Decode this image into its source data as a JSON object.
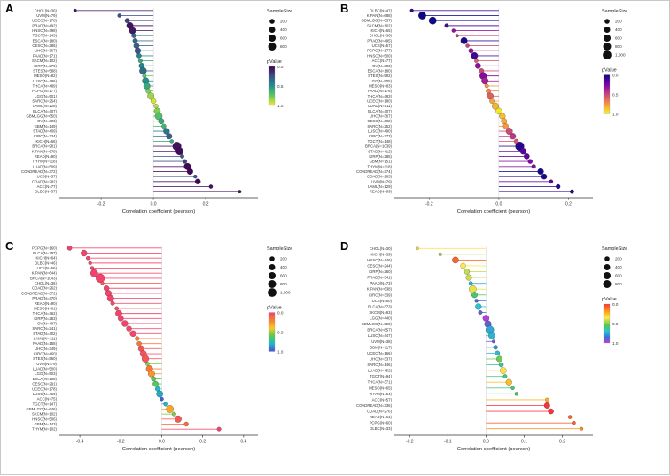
{
  "figure_title": "Pan-cancer correlation lollipop panels",
  "chart_data": [
    {
      "panel": "A",
      "type": "lollipop",
      "xlabel": "Correlation coefficient (pearson)",
      "xlim": [
        -0.36,
        0.4
      ],
      "xticks": [
        -0.2,
        0.0,
        0.2
      ],
      "size_legend": {
        "title": "SampleSize",
        "values": [
          200,
          400,
          600,
          800
        ]
      },
      "p_legend": {
        "title": "pValue",
        "ticks": [
          0.0,
          0.5,
          1.0
        ],
        "stops": [
          [
            0,
            "#440154"
          ],
          [
            0.25,
            "#3b528b"
          ],
          [
            0.5,
            "#21918c"
          ],
          [
            0.75,
            "#5ec962"
          ],
          [
            1,
            "#fde725"
          ]
        ]
      },
      "items": [
        {
          "l": "CHOL(N=36)",
          "n": 36,
          "r": -0.3,
          "p": 0.08
        },
        {
          "l": "UVM(N=79)",
          "n": 79,
          "r": -0.13,
          "p": 0.25
        },
        {
          "l": "UCEC(N=178)",
          "n": 178,
          "r": -0.1,
          "p": 0.2
        },
        {
          "l": "PRAD(N=492)",
          "n": 492,
          "r": -0.09,
          "p": 0.05
        },
        {
          "l": "HNSC(N=498)",
          "n": 498,
          "r": -0.08,
          "p": 0.07
        },
        {
          "l": "TGCT(N=143)",
          "n": 143,
          "r": -0.075,
          "p": 0.35
        },
        {
          "l": "ESCA(N=180)",
          "n": 180,
          "r": -0.07,
          "p": 0.35
        },
        {
          "l": "CESC(N=286)",
          "n": 286,
          "r": -0.065,
          "p": 0.3
        },
        {
          "l": "LIHC(N=367)",
          "n": 367,
          "r": -0.06,
          "p": 0.25
        },
        {
          "l": "PAAD(N=171)",
          "n": 171,
          "r": -0.055,
          "p": 0.45
        },
        {
          "l": "SKCM(N=102)",
          "n": 102,
          "r": -0.05,
          "p": 0.6
        },
        {
          "l": "KIRP(N=279)",
          "n": 279,
          "r": -0.045,
          "p": 0.45
        },
        {
          "l": "STES(N=588)",
          "n": 588,
          "r": -0.04,
          "p": 0.35
        },
        {
          "l": "MESO(N=82)",
          "n": 82,
          "r": -0.035,
          "p": 0.75
        },
        {
          "l": "LUSC(N=486)",
          "n": 486,
          "r": -0.03,
          "p": 0.5
        },
        {
          "l": "THCA(N=489)",
          "n": 489,
          "r": -0.025,
          "p": 0.6
        },
        {
          "l": "PCPG(N=177)",
          "n": 177,
          "r": -0.02,
          "p": 0.8
        },
        {
          "l": "LGG(N=501)",
          "n": 501,
          "r": -0.01,
          "p": 0.85
        },
        {
          "l": "SARC(N=254)",
          "n": 254,
          "r": 0.0,
          "p": 0.95
        },
        {
          "l": "LAML(N=126)",
          "n": 126,
          "r": 0.01,
          "p": 0.9
        },
        {
          "l": "BLCA(N=407)",
          "n": 407,
          "r": 0.015,
          "p": 0.8
        },
        {
          "l": "GBMLGG(N=650)",
          "n": 650,
          "r": 0.02,
          "p": 0.7
        },
        {
          "l": "OV(N=303)",
          "n": 303,
          "r": 0.03,
          "p": 0.6
        },
        {
          "l": "GBM(N=149)",
          "n": 149,
          "r": 0.04,
          "p": 0.65
        },
        {
          "l": "STAD(N=409)",
          "n": 409,
          "r": 0.05,
          "p": 0.4
        },
        {
          "l": "KIRC(N=334)",
          "n": 334,
          "r": 0.06,
          "p": 0.3
        },
        {
          "l": "KICH(N=66)",
          "n": 66,
          "r": 0.07,
          "p": 0.6
        },
        {
          "l": "BRCA(N=981)",
          "n": 981,
          "r": 0.09,
          "p": 0.05
        },
        {
          "l": "KIPAN(N=679)",
          "n": 679,
          "r": 0.1,
          "p": 0.03
        },
        {
          "l": "READ(N=90)",
          "n": 90,
          "r": 0.11,
          "p": 0.3
        },
        {
          "l": "THYM(N=118)",
          "n": 118,
          "r": 0.12,
          "p": 0.2
        },
        {
          "l": "LUAD(N=509)",
          "n": 509,
          "r": 0.13,
          "p": 0.02
        },
        {
          "l": "COADREAD(N=372)",
          "n": 372,
          "r": 0.14,
          "p": 0.02
        },
        {
          "l": "UCS(N=57)",
          "n": 57,
          "r": 0.16,
          "p": 0.25
        },
        {
          "l": "COAD(N=282)",
          "n": 282,
          "r": 0.17,
          "p": 0.01
        },
        {
          "l": "ACC(N=77)",
          "n": 77,
          "r": 0.22,
          "p": 0.06
        },
        {
          "l": "DLBC(N=37)",
          "n": 37,
          "r": 0.33,
          "p": 0.05
        }
      ]
    },
    {
      "panel": "B",
      "type": "lollipop",
      "xlabel": "Correlation coefficient (pearson)",
      "xlim": [
        -0.3,
        0.27
      ],
      "xticks": [
        -0.2,
        0.0,
        0.2
      ],
      "size_legend": {
        "title": "SampleSize",
        "values": [
          200,
          400,
          600,
          800,
          1000
        ]
      },
      "p_legend": {
        "title": "pValue",
        "ticks": [
          0.0,
          0.5,
          1.0
        ],
        "stops": [
          [
            0,
            "#0d0887"
          ],
          [
            0.25,
            "#7e03a8"
          ],
          [
            0.5,
            "#cc4778"
          ],
          [
            0.75,
            "#f89540"
          ],
          [
            1,
            "#f0f921"
          ]
        ]
      },
      "items": [
        {
          "l": "DLBC(N=47)",
          "n": 47,
          "r": -0.25,
          "p": 0.09
        },
        {
          "l": "KIPAN(N=688)",
          "n": 688,
          "r": -0.22,
          "p": 0.0
        },
        {
          "l": "GBMLGG(N=657)",
          "n": 657,
          "r": -0.19,
          "p": 0.0
        },
        {
          "l": "SKCM(N=102)",
          "n": 102,
          "r": -0.15,
          "p": 0.13
        },
        {
          "l": "KICH(N=65)",
          "n": 65,
          "r": -0.13,
          "p": 0.3
        },
        {
          "l": "CHOL(N=36)",
          "n": 36,
          "r": -0.12,
          "p": 0.48
        },
        {
          "l": "PRAD(N=495)",
          "n": 495,
          "r": -0.1,
          "p": 0.03
        },
        {
          "l": "UCS(N=57)",
          "n": 57,
          "r": -0.09,
          "p": 0.5
        },
        {
          "l": "PCPG(N=177)",
          "n": 177,
          "r": -0.08,
          "p": 0.3
        },
        {
          "l": "HNSC(N=500)",
          "n": 500,
          "r": -0.07,
          "p": 0.12
        },
        {
          "l": "ACC(N=77)",
          "n": 77,
          "r": -0.065,
          "p": 0.57
        },
        {
          "l": "OV(N=303)",
          "n": 303,
          "r": -0.06,
          "p": 0.3
        },
        {
          "l": "ESCA(N=180)",
          "n": 180,
          "r": -0.05,
          "p": 0.5
        },
        {
          "l": "STES(N=592)",
          "n": 592,
          "r": -0.045,
          "p": 0.28
        },
        {
          "l": "LGG(N=505)",
          "n": 505,
          "r": -0.04,
          "p": 0.37
        },
        {
          "l": "MESO(N=83)",
          "n": 83,
          "r": -0.035,
          "p": 0.75
        },
        {
          "l": "PAAD(N=176)",
          "n": 176,
          "r": -0.03,
          "p": 0.7
        },
        {
          "l": "THCA(N=493)",
          "n": 493,
          "r": -0.025,
          "p": 0.58
        },
        {
          "l": "UCEC(N=180)",
          "n": 180,
          "r": -0.02,
          "p": 0.79
        },
        {
          "l": "LUAD(N=511)",
          "n": 511,
          "r": -0.01,
          "p": 0.82
        },
        {
          "l": "BLCA(N=407)",
          "n": 407,
          "r": 0.0,
          "p": 0.96
        },
        {
          "l": "LIHC(N=367)",
          "n": 367,
          "r": 0.01,
          "p": 0.85
        },
        {
          "l": "CESC(N=302)",
          "n": 302,
          "r": 0.015,
          "p": 0.8
        },
        {
          "l": "SARC(N=252)",
          "n": 252,
          "r": 0.02,
          "p": 0.75
        },
        {
          "l": "LUSC(N=490)",
          "n": 490,
          "r": 0.03,
          "p": 0.51
        },
        {
          "l": "KIRC(N=373)",
          "n": 373,
          "r": 0.04,
          "p": 0.44
        },
        {
          "l": "TGCT(N=148)",
          "n": 148,
          "r": 0.05,
          "p": 0.55
        },
        {
          "l": "BRCA(N=1039)",
          "n": 1039,
          "r": 0.06,
          "p": 0.05
        },
        {
          "l": "STAD(N=412)",
          "n": 412,
          "r": 0.07,
          "p": 0.16
        },
        {
          "l": "KIRP(N=285)",
          "n": 285,
          "r": 0.08,
          "p": 0.18
        },
        {
          "l": "GBM(N=151)",
          "n": 151,
          "r": 0.09,
          "p": 0.27
        },
        {
          "l": "THYM(N=118)",
          "n": 118,
          "r": 0.1,
          "p": 0.28
        },
        {
          "l": "COADREAD(N=374)",
          "n": 374,
          "r": 0.12,
          "p": 0.02
        },
        {
          "l": "COAD(N=285)",
          "n": 285,
          "r": 0.13,
          "p": 0.03
        },
        {
          "l": "UVM(N=79)",
          "n": 79,
          "r": 0.15,
          "p": 0.19
        },
        {
          "l": "LAML(N=129)",
          "n": 129,
          "r": 0.17,
          "p": 0.06
        },
        {
          "l": "READ(N=89)",
          "n": 89,
          "r": 0.21,
          "p": 0.05
        }
      ]
    },
    {
      "panel": "C",
      "type": "lollipop",
      "xlabel": "Correlation coefficient (pearson)",
      "xlim": [
        -0.5,
        0.47
      ],
      "xticks": [
        -0.4,
        -0.2,
        0.0,
        0.2,
        0.4
      ],
      "size_legend": {
        "title": "SampleSize",
        "values": [
          200,
          400,
          600,
          800,
          1000
        ]
      },
      "p_legend": {
        "title": "pValue",
        "ticks": [
          0.0,
          0.5,
          1.0
        ],
        "stops": [
          [
            0,
            "#f5426c"
          ],
          [
            0.2,
            "#f97d2e"
          ],
          [
            0.4,
            "#f7c82a"
          ],
          [
            0.6,
            "#59c94e"
          ],
          [
            0.8,
            "#1fb8c9"
          ],
          [
            1,
            "#4b4fd6"
          ]
        ]
      },
      "items": [
        {
          "l": "PCPG(N=160)",
          "n": 160,
          "r": -0.45,
          "p": 0.0
        },
        {
          "l": "BLCA(N=397)",
          "n": 397,
          "r": -0.38,
          "p": 0.0
        },
        {
          "l": "KICH(N=64)",
          "n": 64,
          "r": -0.36,
          "p": 0.0
        },
        {
          "l": "DLBC(N=46)",
          "n": 46,
          "r": -0.35,
          "p": 0.02
        },
        {
          "l": "UCS(N=56)",
          "n": 56,
          "r": -0.34,
          "p": 0.01
        },
        {
          "l": "KIPAN(N=644)",
          "n": 644,
          "r": -0.33,
          "p": 0.0
        },
        {
          "l": "BRCA(N=1043)",
          "n": 1043,
          "r": -0.3,
          "p": 0.0
        },
        {
          "l": "CHOL(N=36)",
          "n": 36,
          "r": -0.29,
          "p": 0.09
        },
        {
          "l": "COAD(N=262)",
          "n": 262,
          "r": -0.27,
          "p": 0.0
        },
        {
          "l": "COADREAD(N=372)",
          "n": 372,
          "r": -0.26,
          "p": 0.0
        },
        {
          "l": "PRAD(N=470)",
          "n": 470,
          "r": -0.25,
          "p": 0.0
        },
        {
          "l": "READ(N=90)",
          "n": 90,
          "r": -0.24,
          "p": 0.02
        },
        {
          "l": "MESO(N=81)",
          "n": 81,
          "r": -0.22,
          "p": 0.05
        },
        {
          "l": "THCA(N=462)",
          "n": 462,
          "r": -0.21,
          "p": 0.0
        },
        {
          "l": "KIRP(N=283)",
          "n": 283,
          "r": -0.2,
          "p": 0.0
        },
        {
          "l": "OV(N=407)",
          "n": 407,
          "r": -0.18,
          "p": 0.0
        },
        {
          "l": "SARC(N=241)",
          "n": 241,
          "r": -0.16,
          "p": 0.01
        },
        {
          "l": "STAD(N=402)",
          "n": 402,
          "r": -0.14,
          "p": 0.01
        },
        {
          "l": "LAML(N=111)",
          "n": 111,
          "r": -0.12,
          "p": 0.2
        },
        {
          "l": "PAAD(N=158)",
          "n": 158,
          "r": -0.11,
          "p": 0.17
        },
        {
          "l": "LIHC(N=349)",
          "n": 349,
          "r": -0.1,
          "p": 0.06
        },
        {
          "l": "KIRC(N=460)",
          "n": 460,
          "r": -0.09,
          "p": 0.05
        },
        {
          "l": "STES(N=560)",
          "n": 560,
          "r": -0.08,
          "p": 0.06
        },
        {
          "l": "UVM(N=79)",
          "n": 79,
          "r": -0.07,
          "p": 0.54
        },
        {
          "l": "LUAD(N=500)",
          "n": 500,
          "r": -0.06,
          "p": 0.18
        },
        {
          "l": "LGG(N=503)",
          "n": 503,
          "r": -0.05,
          "p": 0.26
        },
        {
          "l": "ESCA(N=158)",
          "n": 158,
          "r": -0.04,
          "p": 0.62
        },
        {
          "l": "CESC(N=291)",
          "n": 291,
          "r": -0.03,
          "p": 0.61
        },
        {
          "l": "UCEC(N=178)",
          "n": 178,
          "r": -0.02,
          "p": 0.79
        },
        {
          "l": "LUSC(N=469)",
          "n": 469,
          "r": -0.01,
          "p": 0.83
        },
        {
          "l": "ACC(N=75)",
          "n": 75,
          "r": 0.0,
          "p": 0.97
        },
        {
          "l": "TGCT(N=147)",
          "n": 147,
          "r": 0.02,
          "p": 0.81
        },
        {
          "l": "GBMLGG(N=646)",
          "n": 646,
          "r": 0.04,
          "p": 0.31
        },
        {
          "l": "SKCM(N=102)",
          "n": 102,
          "r": 0.06,
          "p": 0.55
        },
        {
          "l": "HNSC(N=506)",
          "n": 506,
          "r": 0.08,
          "p": 0.07
        },
        {
          "l": "GBM(N=143)",
          "n": 143,
          "r": 0.12,
          "p": 0.15
        },
        {
          "l": "THYM(N=102)",
          "n": 102,
          "r": 0.28,
          "p": 0.0
        }
      ]
    },
    {
      "panel": "D",
      "type": "lollipop",
      "xlabel": "Correlation coefficient (pearson)",
      "xlim": [
        -0.24,
        0.28
      ],
      "xticks": [
        -0.2,
        -0.1,
        0.0,
        0.1,
        0.2
      ],
      "size_legend": {
        "title": "SampleSize",
        "values": [
          200,
          400,
          600,
          800
        ]
      },
      "p_legend": {
        "title": "pValue",
        "ticks": [
          0.0,
          0.5,
          1.0
        ],
        "stops": [
          [
            0,
            "#f8333c"
          ],
          [
            0.2,
            "#fca311"
          ],
          [
            0.35,
            "#ffe74c"
          ],
          [
            0.55,
            "#53c653"
          ],
          [
            0.7,
            "#29c5cf"
          ],
          [
            0.85,
            "#3a6fd8"
          ],
          [
            1,
            "#c13ad6"
          ]
        ]
      },
      "items": [
        {
          "l": "CHOL(N=30)",
          "n": 30,
          "r": -0.18,
          "p": 0.34
        },
        {
          "l": "KICH(N=39)",
          "n": 39,
          "r": -0.12,
          "p": 0.46
        },
        {
          "l": "HNSC(N=446)",
          "n": 446,
          "r": -0.08,
          "p": 0.09
        },
        {
          "l": "CESC(N=244)",
          "n": 244,
          "r": -0.06,
          "p": 0.35
        },
        {
          "l": "KIRP(N=260)",
          "n": 260,
          "r": -0.05,
          "p": 0.42
        },
        {
          "l": "PRAD(N=341)",
          "n": 341,
          "r": -0.045,
          "p": 0.41
        },
        {
          "l": "PAAD(N=73)",
          "n": 73,
          "r": -0.04,
          "p": 0.74
        },
        {
          "l": "KIPAN(N=638)",
          "n": 638,
          "r": -0.035,
          "p": 0.38
        },
        {
          "l": "KIRC(N=339)",
          "n": 339,
          "r": -0.03,
          "p": 0.58
        },
        {
          "l": "UCS(N=50)",
          "n": 50,
          "r": -0.025,
          "p": 0.86
        },
        {
          "l": "BLCA(N=373)",
          "n": 373,
          "r": -0.02,
          "p": 0.7
        },
        {
          "l": "SKCM(N=93)",
          "n": 93,
          "r": -0.015,
          "p": 0.89
        },
        {
          "l": "LGG(N=440)",
          "n": 440,
          "r": 0.0,
          "p": 0.98
        },
        {
          "l": "GBMLGG(N=520)",
          "n": 520,
          "r": 0.005,
          "p": 0.9
        },
        {
          "l": "BRCA(N=857)",
          "n": 857,
          "r": 0.01,
          "p": 0.75
        },
        {
          "l": "LUSC(N=447)",
          "n": 447,
          "r": 0.015,
          "p": 0.73
        },
        {
          "l": "UVM(N=38)",
          "n": 38,
          "r": 0.02,
          "p": 0.91
        },
        {
          "l": "GBM(N=117)",
          "n": 117,
          "r": 0.025,
          "p": 0.79
        },
        {
          "l": "UCEC(N=166)",
          "n": 166,
          "r": 0.03,
          "p": 0.72
        },
        {
          "l": "LIHC(N=337)",
          "n": 337,
          "r": 0.035,
          "p": 0.52
        },
        {
          "l": "SARC(N=146)",
          "n": 146,
          "r": 0.04,
          "p": 0.63
        },
        {
          "l": "LUAD(N=452)",
          "n": 452,
          "r": 0.045,
          "p": 0.34
        },
        {
          "l": "TGCT(N=94)",
          "n": 94,
          "r": 0.05,
          "p": 0.62
        },
        {
          "l": "THCA(N=371)",
          "n": 371,
          "r": 0.06,
          "p": 0.26
        },
        {
          "l": "MESO(N=65)",
          "n": 65,
          "r": 0.07,
          "p": 0.6
        },
        {
          "l": "THYM(N=54)",
          "n": 54,
          "r": 0.08,
          "p": 0.57
        },
        {
          "l": "ACC(N=57)",
          "n": 57,
          "r": 0.16,
          "p": 0.23
        },
        {
          "l": "COADREAD(N=336)",
          "n": 336,
          "r": 0.16,
          "p": 0.0
        },
        {
          "l": "COAD(N=276)",
          "n": 276,
          "r": 0.17,
          "p": 0.0
        },
        {
          "l": "READ(N=61)",
          "n": 61,
          "r": 0.22,
          "p": 0.09
        },
        {
          "l": "PCPG(N=60)",
          "n": 60,
          "r": 0.23,
          "p": 0.07
        },
        {
          "l": "DLBC(N=33)",
          "n": 33,
          "r": 0.25,
          "p": 0.16
        }
      ]
    }
  ]
}
